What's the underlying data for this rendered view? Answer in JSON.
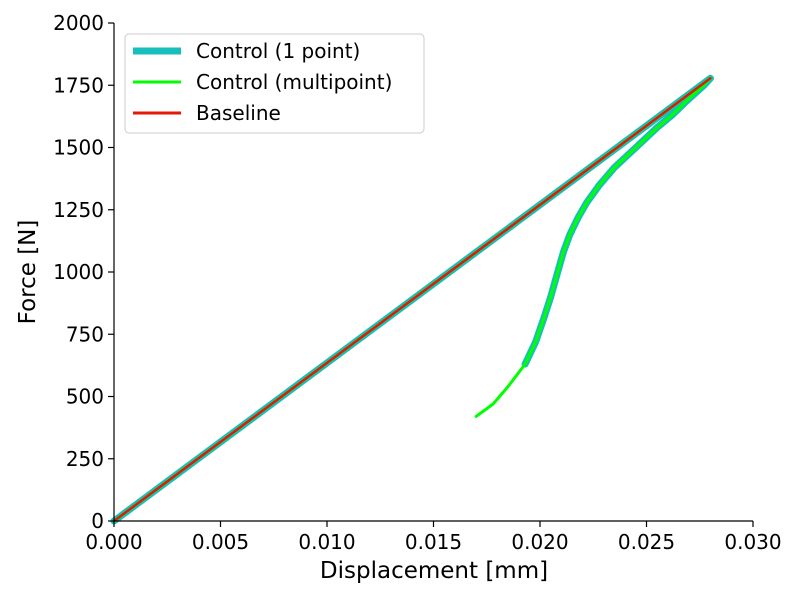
{
  "chart_data": {
    "type": "line",
    "xlabel": "Displacement [mm]",
    "ylabel": "Force [N]",
    "xlim": [
      0,
      0.03
    ],
    "ylim": [
      0,
      2000
    ],
    "xticks": [
      "0.000",
      "0.005",
      "0.010",
      "0.015",
      "0.020",
      "0.025",
      "0.030"
    ],
    "yticks": [
      "0",
      "250",
      "500",
      "750",
      "1000",
      "1250",
      "1500",
      "1750",
      "2000"
    ],
    "legend_position": "top-left",
    "grid": false,
    "series": [
      {
        "name": "Control (1 point)",
        "color": "#17bebb",
        "x": [
          0.0,
          0.028,
          0.0277,
          0.0268,
          0.0262,
          0.0255,
          0.0245,
          0.0235,
          0.0228,
          0.0222,
          0.0218,
          0.0214,
          0.0211,
          0.0208,
          0.0205,
          0.0202,
          0.0198,
          0.0193
        ],
        "y": [
          0,
          1778,
          1750,
          1680,
          1630,
          1580,
          1500,
          1420,
          1350,
          1280,
          1220,
          1150,
          1080,
          990,
          900,
          820,
          720,
          630
        ]
      },
      {
        "name": "Control (multipoint)",
        "color": "#00ff00",
        "x": [
          0.0,
          0.028,
          0.0277,
          0.0268,
          0.0262,
          0.0255,
          0.0245,
          0.0235,
          0.0228,
          0.0222,
          0.0218,
          0.0214,
          0.0211,
          0.0208,
          0.0205,
          0.0202,
          0.0198,
          0.0193,
          0.0185,
          0.0178,
          0.017
        ],
        "y": [
          0,
          1778,
          1750,
          1680,
          1630,
          1580,
          1500,
          1420,
          1350,
          1280,
          1220,
          1150,
          1080,
          990,
          900,
          820,
          720,
          630,
          540,
          470,
          420
        ]
      },
      {
        "name": "Baseline",
        "color": "#e3170a",
        "x": [
          0.0,
          0.028
        ],
        "y": [
          0,
          1778
        ]
      }
    ]
  }
}
